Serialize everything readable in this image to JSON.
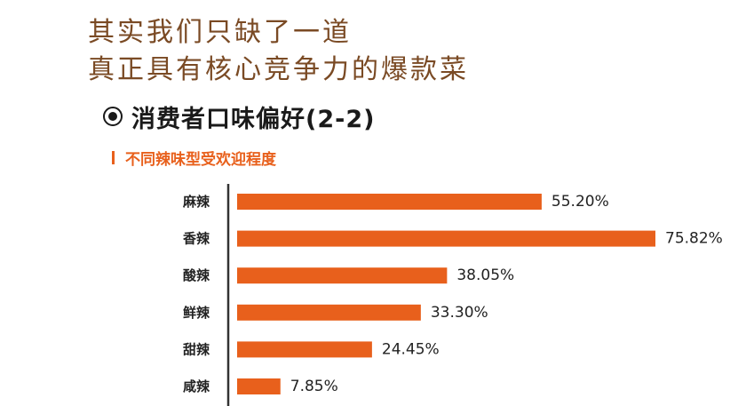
{
  "headline": {
    "line1": "其实我们只缺了一道",
    "line2": "真正具有核心竞争力的爆款菜"
  },
  "section": {
    "icon": "radio-selected-icon",
    "title": "消费者口味偏好(2-2)"
  },
  "colors": {
    "headline": "#7a4a24",
    "accent": "#e8601c",
    "text": "#222222"
  },
  "chart_data": {
    "type": "bar",
    "orientation": "horizontal",
    "title": "不同辣味型受欢迎程度",
    "xlabel": "",
    "ylabel": "",
    "categories": [
      "麻辣",
      "香辣",
      "酸辣",
      "鲜辣",
      "甜辣",
      "咸辣"
    ],
    "values": [
      55.2,
      75.82,
      38.05,
      33.3,
      24.45,
      7.85
    ],
    "value_labels": [
      "55.20%",
      "75.82%",
      "38.05%",
      "33.30%",
      "24.45%",
      "7.85%"
    ],
    "unit": "%",
    "xlim": [
      0,
      80
    ],
    "grid": false,
    "legend": "none",
    "bar_color": "#e8601c"
  }
}
